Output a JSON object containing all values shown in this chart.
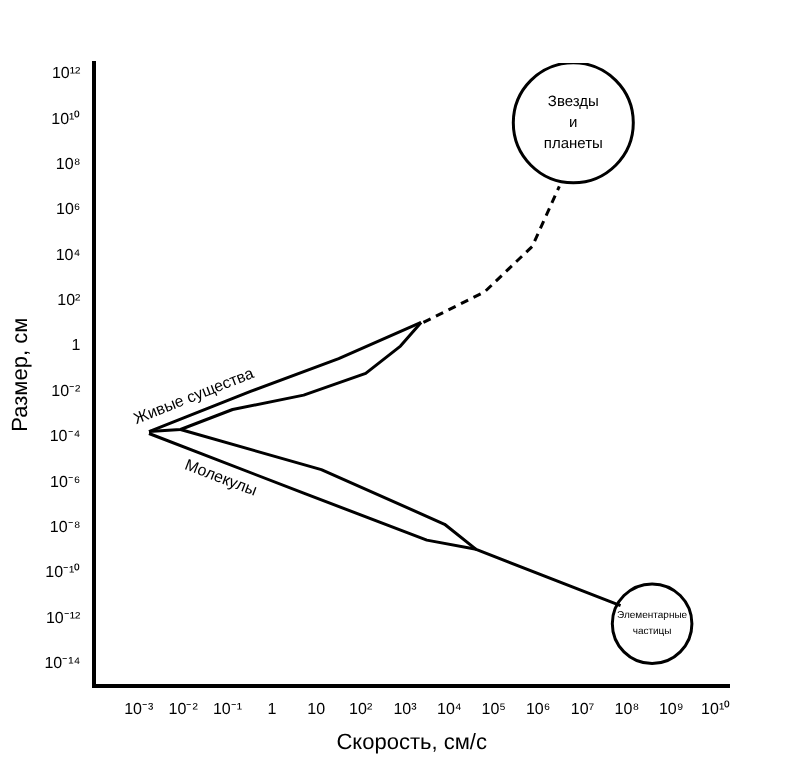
{
  "chart_data": {
    "type": "line",
    "xlabel": "Скорость, см/с",
    "ylabel": "Размер, см",
    "log": "xy",
    "grid": false,
    "legend": false,
    "xlim": [
      0.0001,
      20000000000
    ],
    "ylim": [
      1e-15,
      3000000000000
    ],
    "xticks": [
      {
        "value": 0.001,
        "label": "10⁻³"
      },
      {
        "value": 0.01,
        "label": "10⁻²"
      },
      {
        "value": 0.1,
        "label": "10⁻¹"
      },
      1,
      10,
      {
        "value": 100,
        "label": "10²"
      },
      {
        "value": 1000,
        "label": "10³"
      },
      {
        "value": 10000,
        "label": "10⁴"
      },
      {
        "value": 100000,
        "label": "10⁵"
      },
      {
        "value": 1000000,
        "label": "10⁶"
      },
      {
        "value": 10000000,
        "label": "10⁷"
      },
      {
        "value": 100000000,
        "label": "10⁸"
      },
      {
        "value": 1000000000,
        "label": "10⁹"
      },
      {
        "value": 10000000000,
        "label": "10¹⁰"
      }
    ],
    "yticks": [
      {
        "value": 1e-14,
        "label": "10⁻¹⁴"
      },
      {
        "value": 1e-12,
        "label": "10⁻¹²"
      },
      {
        "value": 1e-10,
        "label": "10⁻¹⁰"
      },
      {
        "value": 1e-08,
        "label": "10⁻⁸"
      },
      {
        "value": 1e-06,
        "label": "10⁻⁶"
      },
      {
        "value": 0.0001,
        "label": "10⁻⁴"
      },
      {
        "value": 0.01,
        "label": "10⁻²"
      },
      1,
      {
        "value": 100,
        "label": "10²"
      },
      {
        "value": 10000,
        "label": "10⁴"
      },
      {
        "value": 1000000,
        "label": "10⁶"
      },
      {
        "value": 100000000,
        "label": "10⁸"
      },
      {
        "value": 10000000000,
        "label": "10¹⁰"
      },
      {
        "value": 1000000000000,
        "label": "10¹²"
      }
    ],
    "series": [
      {
        "name": "Живые существа",
        "color": "#000000",
        "x": [
          0.0017,
          0.33,
          32,
          2300
        ],
        "values": [
          0.00017,
          0.01,
          0.28,
          11
        ]
      },
      {
        "color": "#000000",
        "x": [
          0.0017,
          0.0087,
          0.13,
          5.2,
          130,
          790,
          2300
        ],
        "values": [
          0.00017,
          0.00021,
          0.0016,
          0.0069,
          0.063,
          1,
          11
        ]
      },
      {
        "color": "#000000",
        "x": [
          0.0087,
          13,
          7800,
          40000,
          72000000
        ],
        "values": [
          0.00021,
          3.6e-06,
          1.4e-08,
          1.1e-09,
          3.6e-12
        ]
      },
      {
        "name": "Молекулы",
        "color": "#000000",
        "x": [
          0.0017,
          5.2,
          3100,
          40000
        ],
        "values": [
          0.00014,
          3.3e-07,
          2.8e-09,
          1.1e-09
        ]
      },
      {
        "color": "#000000",
        "line_style": "dashed",
        "x": [
          2600,
          63000,
          740000,
          3000000
        ],
        "values": [
          11,
          250,
          25000,
          11000000
        ]
      },
      {
        "type": "bubble",
        "color": "#000000",
        "x": [
          6200000,
          370000000
        ],
        "values": [
          6900000000,
          5.8e-13
        ],
        "sizes": [
          1,
          0.44
        ]
      }
    ],
    "annotations": [
      {
        "text": "Звезды и планеты",
        "x": 6200000,
        "y": 6900000000
      },
      {
        "text": "Элементарные частицы",
        "x": 370000000,
        "y": 5.8e-13
      }
    ]
  }
}
